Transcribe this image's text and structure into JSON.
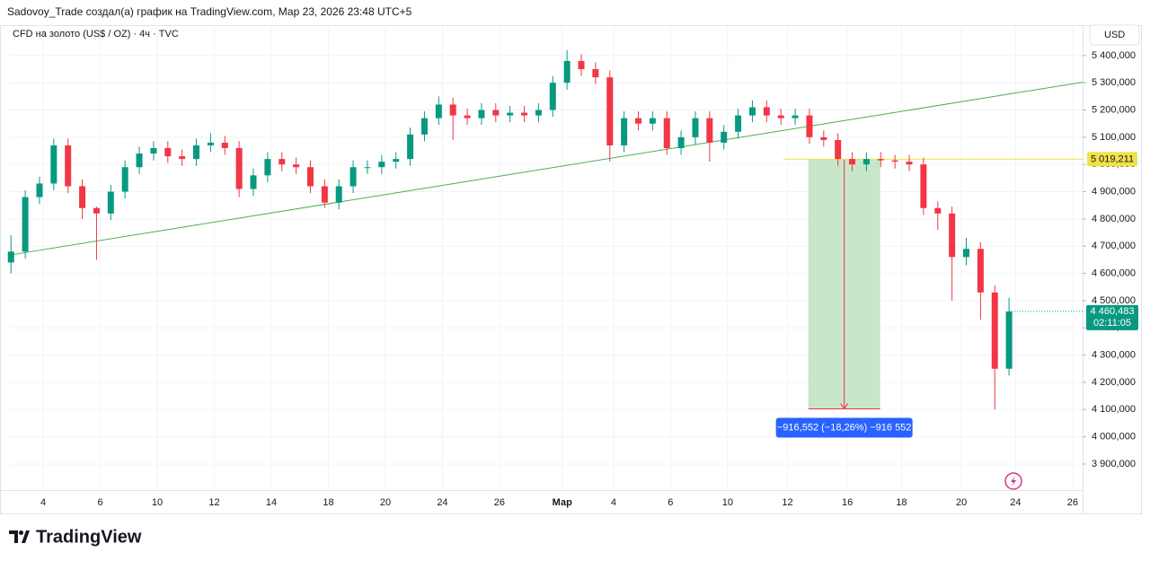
{
  "header": {
    "title": "Sadovoy_Trade создал(а) график на TradingView.com, Мар 23, 2026 23:48 UTC+5",
    "symbol": "CFD на золото (US$ / OZ) · 4ч · TVC",
    "currency": "USD"
  },
  "chart_data": {
    "type": "candlestick",
    "x": [
      -1.13,
      -0.63,
      -0.13,
      0.37,
      0.87,
      1.37,
      1.87,
      2.37,
      2.87,
      3.37,
      3.87,
      4.37,
      4.87,
      5.37,
      5.87,
      6.37,
      6.87,
      7.37,
      7.87,
      8.37,
      8.87,
      9.37,
      9.87,
      10.37,
      10.87,
      11.37,
      11.87,
      12.37,
      12.87,
      13.37,
      13.87,
      14.37,
      14.87,
      15.37,
      15.87,
      16.37,
      16.87,
      17.37,
      17.87,
      18.37,
      18.87,
      19.37,
      19.87,
      20.37,
      20.87,
      21.37,
      21.87,
      22.37,
      22.87,
      23.37,
      23.87,
      24.37,
      24.87,
      25.37,
      25.87,
      26.37,
      26.87,
      27.37,
      27.87,
      28.37,
      28.87,
      29.37,
      29.87,
      30.37,
      30.87,
      31.37,
      31.87,
      32.37,
      32.87,
      33.37,
      33.87
    ],
    "open": [
      4640,
      4680,
      4880,
      4930,
      5070,
      4920,
      4840,
      4820,
      4900,
      4990,
      5040,
      5060,
      5030,
      5020,
      5070,
      5080,
      5060,
      4910,
      4960,
      5020,
      5000,
      4990,
      4920,
      4860,
      4920,
      4990,
      4990,
      5010,
      5020,
      5110,
      5170,
      5220,
      5180,
      5170,
      5200,
      5180,
      5190,
      5180,
      5200,
      5300,
      5380,
      5350,
      5320,
      5070,
      5170,
      5150,
      5170,
      5060,
      5100,
      5170,
      5080,
      5120,
      5180,
      5210,
      5180,
      5170,
      5180,
      5100,
      5090,
      5020,
      5000,
      5020,
      5015,
      5010,
      5000,
      4840,
      4820,
      4660,
      4690,
      4530,
      4250
    ],
    "high": [
      4740,
      4905,
      4955,
      5095,
      5095,
      4945,
      4845,
      4925,
      5015,
      5065,
      5085,
      5085,
      5055,
      5095,
      5115,
      5105,
      5085,
      4985,
      5045,
      5045,
      5025,
      5015,
      4945,
      4945,
      5015,
      5015,
      5035,
      5045,
      5135,
      5195,
      5250,
      5245,
      5205,
      5225,
      5225,
      5215,
      5215,
      5225,
      5325,
      5420,
      5405,
      5375,
      5345,
      5195,
      5195,
      5195,
      5195,
      5125,
      5195,
      5195,
      5145,
      5205,
      5235,
      5235,
      5205,
      5205,
      5205,
      5125,
      5115,
      5045,
      5045,
      5045,
      5035,
      5035,
      5025,
      4865,
      4845,
      4730,
      4715,
      4555,
      4510
    ],
    "low": [
      4600,
      4655,
      4855,
      4905,
      4895,
      4800,
      4650,
      4795,
      4875,
      4965,
      5015,
      5005,
      4995,
      4995,
      5045,
      5035,
      4880,
      4885,
      4935,
      4975,
      4965,
      4895,
      4840,
      4835,
      4895,
      4965,
      4965,
      4985,
      4995,
      5085,
      5145,
      5090,
      5145,
      5145,
      5155,
      5155,
      5155,
      5155,
      5175,
      5275,
      5325,
      5295,
      5010,
      5045,
      5125,
      5125,
      5035,
      5035,
      5075,
      5010,
      5055,
      5095,
      5155,
      5155,
      5145,
      5145,
      5075,
      5065,
      4995,
      4975,
      4975,
      4990,
      4985,
      4975,
      4815,
      4760,
      4500,
      4630,
      4430,
      4100,
      4225
    ],
    "close": [
      4680,
      4880,
      4930,
      5070,
      4920,
      4840,
      4820,
      4900,
      4990,
      5040,
      5060,
      5030,
      5020,
      5070,
      5080,
      5060,
      4910,
      4960,
      5020,
      5000,
      4990,
      4920,
      4860,
      4920,
      4990,
      4990,
      5010,
      5020,
      5110,
      5170,
      5220,
      5180,
      5170,
      5200,
      5180,
      5190,
      5180,
      5200,
      5300,
      5380,
      5350,
      5320,
      5070,
      5170,
      5150,
      5170,
      5060,
      5100,
      5170,
      5080,
      5120,
      5180,
      5210,
      5180,
      5170,
      5180,
      5100,
      5090,
      5020,
      5000,
      5020,
      5015,
      5010,
      5000,
      4840,
      4820,
      4660,
      4690,
      4530,
      4250,
      4460
    ],
    "up_color": "#089981",
    "down_color": "#f23645",
    "xlim": [
      -1.2,
      36.45
    ],
    "ylim": [
      3824,
      5505
    ],
    "grid": true,
    "xticks": [
      {
        "value": 0,
        "label": "4"
      },
      {
        "value": 2,
        "label": "6"
      },
      {
        "value": 4,
        "label": "10"
      },
      {
        "value": 6,
        "label": "12"
      },
      {
        "value": 8,
        "label": "14"
      },
      {
        "value": 10,
        "label": "18"
      },
      {
        "value": 12,
        "label": "20"
      },
      {
        "value": 14,
        "label": "24"
      },
      {
        "value": 16,
        "label": "26"
      },
      {
        "value": 18.2,
        "label": "Мар"
      },
      {
        "value": 20,
        "label": "4"
      },
      {
        "value": 22,
        "label": "6"
      },
      {
        "value": 24,
        "label": "10"
      },
      {
        "value": 26.1,
        "label": "12"
      },
      {
        "value": 28.2,
        "label": "16"
      },
      {
        "value": 30.1,
        "label": "18"
      },
      {
        "value": 32.2,
        "label": "20"
      },
      {
        "value": 34.1,
        "label": "24"
      },
      {
        "value": 36.1,
        "label": "26"
      }
    ],
    "yticks": [
      {
        "value": 3900,
        "label": "3 900,000"
      },
      {
        "value": 4000,
        "label": "4 000,000"
      },
      {
        "value": 4100,
        "label": "4 100,000"
      },
      {
        "value": 4200,
        "label": "4 200,000"
      },
      {
        "value": 4300,
        "label": "4 300,000"
      },
      {
        "value": 4400,
        "label": "4 400,000"
      },
      {
        "value": 4500,
        "label": "4 500,000"
      },
      {
        "value": 4600,
        "label": "4 600,000"
      },
      {
        "value": 4700,
        "label": "4 700,000"
      },
      {
        "value": 4800,
        "label": "4 800,000"
      },
      {
        "value": 4900,
        "label": "4 900,000"
      },
      {
        "value": 5000,
        "label": "5 000,000"
      },
      {
        "value": 5100,
        "label": "5 100,000"
      },
      {
        "value": 5200,
        "label": "5 200,000"
      },
      {
        "value": 5300,
        "label": "5 300,000"
      },
      {
        "value": 5400,
        "label": "5 400,000"
      }
    ],
    "trendline": {
      "x": [
        -1.13,
        36.45
      ],
      "y": [
        4668,
        5302
      ],
      "color": "#4caf50"
    },
    "level": {
      "value": 5019.211,
      "label": "5 019,211",
      "x_start": 25.95,
      "color": "#f0e14a"
    },
    "measure": {
      "x": [
        26.83,
        29.35
      ],
      "from": 5019.211,
      "change": -916.552,
      "label": "−916,552 (−18,26%) −916 552",
      "color": "#c8e6c9",
      "line_color": "#f23645",
      "label_color": "#2962ff"
    },
    "last_price": {
      "value": 4460.483,
      "label": "4 460,483",
      "countdown": "02:11:05"
    }
  },
  "footer": {
    "logo": "TradingView"
  }
}
